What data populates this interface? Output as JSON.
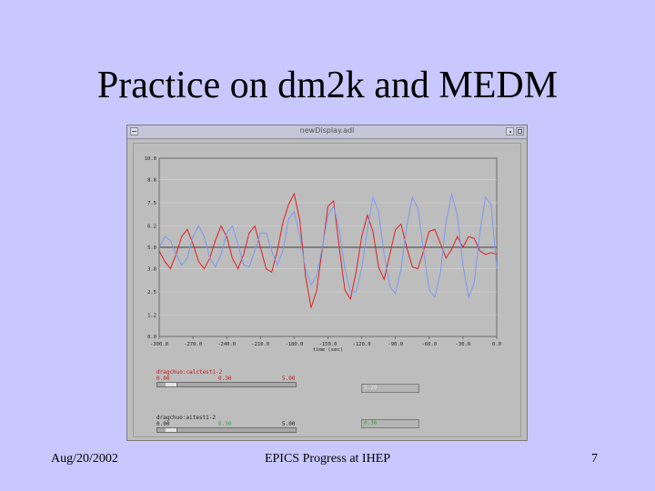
{
  "slide": {
    "title": "Practice on dm2k and MEDM",
    "footer_left": "Aug/20/2002",
    "footer_center": "EPICS Progress at IHEP",
    "footer_right": "7"
  },
  "window": {
    "title": "newDisplay.adl"
  },
  "chart_data": {
    "type": "line",
    "xlabel": "time (sec)",
    "ylabel": "",
    "xlim": [
      -300,
      0
    ],
    "ylim": [
      0,
      10
    ],
    "x_ticks": [
      "-300.0",
      "-270.0",
      "-240.0",
      "-210.0",
      "-180.0",
      "-150.0",
      "-120.0",
      "-90.0",
      "-60.0",
      "-30.0",
      "0.0"
    ],
    "y_ticks": [
      "0.0",
      "1.2",
      "2.5",
      "3.8",
      "5.0",
      "6.2",
      "7.5",
      "8.8",
      "10.0"
    ],
    "baseline": 5.0,
    "colors": {
      "red_series": "#e02020",
      "blue_series": "#7b9af0",
      "baseline": "#404040",
      "plot_bg": "#bdbdbd",
      "grid": "#d9d9d9"
    },
    "series": [
      {
        "color": "#e02020",
        "x": [
          -300,
          -295,
          -290,
          -285,
          -280,
          -275,
          -270,
          -265,
          -260,
          -255,
          -250,
          -245,
          -240,
          -235,
          -230,
          -225,
          -220,
          -215,
          -210,
          -205,
          -200,
          -195,
          -190,
          -185,
          -180,
          -175,
          -170,
          -165,
          -160,
          -155,
          -150,
          -145,
          -140,
          -135,
          -130,
          -125,
          -120,
          -115,
          -110,
          -105,
          -100,
          -95,
          -90,
          -85,
          -80,
          -75,
          -70,
          -65,
          -60,
          -55,
          -50,
          -45,
          -40,
          -35,
          -30,
          -25,
          -20,
          -15,
          -10,
          -5,
          0
        ],
        "y": [
          4.8,
          4.2,
          3.8,
          4.6,
          5.6,
          6.0,
          5.2,
          4.2,
          3.8,
          4.4,
          5.4,
          6.2,
          5.6,
          4.4,
          3.8,
          4.6,
          5.8,
          6.2,
          5.0,
          3.8,
          3.6,
          4.8,
          6.4,
          7.4,
          8.0,
          6.5,
          3.4,
          1.6,
          2.6,
          4.9,
          7.3,
          7.6,
          5.0,
          2.6,
          2.1,
          3.6,
          5.6,
          6.8,
          5.9,
          3.9,
          3.2,
          4.6,
          6.0,
          6.3,
          5.0,
          3.9,
          3.8,
          4.8,
          5.9,
          6.0,
          5.2,
          4.4,
          4.9,
          5.6,
          5.0,
          5.6,
          5.5,
          4.8,
          4.6,
          4.7,
          4.6
        ]
      },
      {
        "color": "#7b9af0",
        "x": [
          -300,
          -295,
          -290,
          -285,
          -280,
          -275,
          -270,
          -265,
          -260,
          -255,
          -250,
          -245,
          -240,
          -235,
          -230,
          -225,
          -220,
          -215,
          -210,
          -205,
          -200,
          -195,
          -190,
          -185,
          -180,
          -175,
          -170,
          -165,
          -160,
          -155,
          -150,
          -145,
          -140,
          -135,
          -130,
          -125,
          -120,
          -115,
          -110,
          -105,
          -100,
          -95,
          -90,
          -85,
          -80,
          -75,
          -70,
          -65,
          -60,
          -55,
          -50,
          -45,
          -40,
          -35,
          -30,
          -25,
          -20,
          -15,
          -10,
          -5,
          0
        ],
        "y": [
          5.0,
          5.6,
          5.4,
          4.6,
          4.0,
          4.4,
          5.6,
          6.2,
          5.6,
          4.4,
          3.9,
          4.6,
          5.8,
          6.2,
          5.2,
          4.0,
          3.9,
          4.8,
          5.8,
          5.8,
          4.8,
          4.0,
          4.8,
          6.6,
          7.0,
          5.6,
          3.8,
          2.9,
          3.4,
          5.0,
          6.8,
          7.3,
          6.0,
          3.8,
          2.5,
          2.5,
          3.8,
          6.0,
          7.8,
          7.0,
          4.6,
          2.8,
          2.4,
          3.8,
          6.2,
          7.8,
          7.2,
          4.8,
          2.6,
          2.2,
          3.6,
          6.4,
          8.0,
          6.8,
          4.0,
          2.2,
          3.0,
          5.8,
          7.8,
          7.4,
          3.8
        ]
      }
    ]
  },
  "controls": [
    {
      "label": "dragchuo:calctest1-2",
      "min": "0.00",
      "value": "0.30",
      "max": "5.00",
      "readout": "1.20",
      "label_color": "#c01818",
      "value_color": "#c01818",
      "readout_color": "#e6e6e6",
      "thumb_fraction": 0.06
    },
    {
      "label": "dragchuo:aitest1-2",
      "min": "0.00",
      "value": "0.30",
      "max": "5.00",
      "readout": "0.30",
      "label_color": "#202020",
      "value_color": "#3ca03c",
      "readout_color": "#3ca03c",
      "thumb_fraction": 0.06
    }
  ]
}
